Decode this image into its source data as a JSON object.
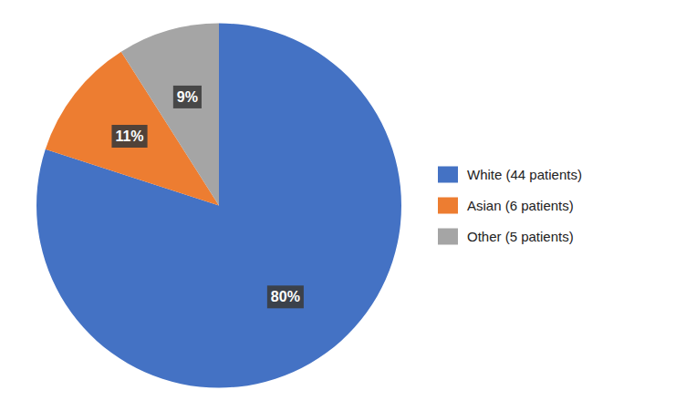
{
  "chart_data": {
    "type": "pie",
    "categories": [
      "White (44 patients)",
      "Asian (6 patients)",
      "Other (5 patients)"
    ],
    "values": [
      80,
      11,
      9
    ],
    "value_labels": [
      "80%",
      "11%",
      "9%"
    ],
    "colors": [
      "#4472C4",
      "#ED7D31",
      "#A5A5A5"
    ],
    "data_labels": true,
    "legend": "right"
  }
}
